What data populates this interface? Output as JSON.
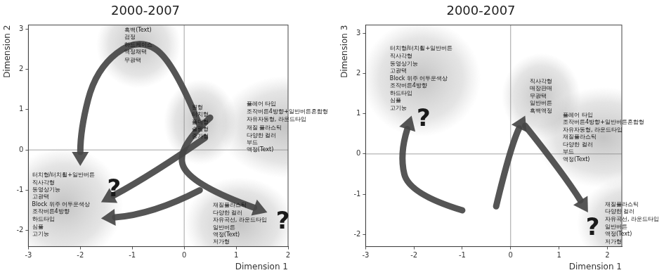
{
  "chart_data": [
    {
      "type": "scatter",
      "title": "2000-2007",
      "x_label": "Dimension 1",
      "y_label": "Dimension 2",
      "xlim": [
        -3,
        2
      ],
      "ylim": [
        -2.4,
        3.1
      ],
      "xticks": [
        -3,
        -2,
        -1,
        0,
        1,
        2
      ],
      "yticks": [
        -2,
        -1,
        0,
        1,
        2,
        3
      ],
      "grid": false,
      "marker": "none",
      "groups": [
        {
          "points": [
            {
              "x": -1.15,
              "y": 2.98,
              "label": "흑백(Text)"
            },
            {
              "x": -1.15,
              "y": 2.8,
              "label": "검정"
            },
            {
              "x": -1.15,
              "y": 2.6,
              "label": "하드케이스"
            },
            {
              "x": -1.15,
              "y": 2.43,
              "label": "액정채택"
            },
            {
              "x": -1.15,
              "y": 2.23,
              "label": "무광택"
            }
          ]
        },
        {
          "points": [
            {
              "x": 0.15,
              "y": 1.05,
              "label": "원형"
            },
            {
              "x": 0.15,
              "y": 0.87,
              "label": "터치형"
            },
            {
              "x": 0.15,
              "y": 0.69,
              "label": "폴더형"
            },
            {
              "x": 0.15,
              "y": 0.51,
              "label": "슬림형"
            },
            {
              "x": 0.15,
              "y": 0.33,
              "label": "중가형"
            }
          ]
        },
        {
          "points": [
            {
              "x": 1.2,
              "y": 1.14,
              "label": "플레어 타입"
            },
            {
              "x": 1.2,
              "y": 0.95,
              "label": "조작버튼4방향+일반버튼혼합형"
            },
            {
              "x": 1.2,
              "y": 0.75,
              "label": "자유자동형, 라운드타입"
            },
            {
              "x": 1.2,
              "y": 0.55,
              "label": "재질 플라스틱"
            },
            {
              "x": 1.2,
              "y": 0.36,
              "label": "다양한 컬러"
            },
            {
              "x": 1.2,
              "y": 0.18,
              "label": "부드"
            },
            {
              "x": 1.2,
              "y": 0.0,
              "label": "액정(Text)"
            }
          ]
        },
        {
          "points": [
            {
              "x": -2.93,
              "y": -0.63,
              "label": "터치형/터치휠+일반버튼"
            },
            {
              "x": -2.93,
              "y": -0.81,
              "label": "직사각형"
            },
            {
              "x": -2.93,
              "y": -0.99,
              "label": "동영상기능"
            },
            {
              "x": -2.93,
              "y": -1.17,
              "label": "고광택"
            },
            {
              "x": -2.93,
              "y": -1.36,
              "label": "Block 위주 어두운색상"
            },
            {
              "x": -2.93,
              "y": -1.54,
              "label": "조작버튼4방향"
            },
            {
              "x": -2.93,
              "y": -1.73,
              "label": "하드타입"
            },
            {
              "x": -2.93,
              "y": -1.91,
              "label": "심플"
            },
            {
              "x": -2.93,
              "y": -2.1,
              "label": "고기능"
            }
          ]
        },
        {
          "points": [
            {
              "x": 0.55,
              "y": -1.38,
              "label": "재질플라스틱"
            },
            {
              "x": 0.55,
              "y": -1.56,
              "label": "다양한 컬러"
            },
            {
              "x": 0.55,
              "y": -1.74,
              "label": "자유곡선, 라운드타입"
            },
            {
              "x": 0.55,
              "y": -1.93,
              "label": "일반버튼"
            },
            {
              "x": 0.55,
              "y": -2.11,
              "label": "액정(Text)"
            },
            {
              "x": 0.55,
              "y": -2.29,
              "label": "저가형"
            }
          ]
        }
      ],
      "annotations": [
        {
          "text": "?",
          "x": -1.35,
          "y": -1.0
        },
        {
          "text": "?",
          "x": 1.9,
          "y": -1.8
        }
      ],
      "arrows": [
        [
          [
            0.3,
            0.6
          ],
          [
            -0.2,
            2.2
          ],
          [
            -0.9,
            2.8
          ],
          [
            -1.7,
            2.0
          ],
          [
            -2.0,
            0.5
          ],
          [
            -2.0,
            -0.4
          ]
        ],
        [
          [
            0.4,
            0.3
          ],
          [
            -0.6,
            -0.6
          ],
          [
            -1.6,
            -1.3
          ]
        ],
        [
          [
            0.3,
            -1.0
          ],
          [
            -0.6,
            -1.6
          ],
          [
            -1.6,
            -1.7
          ]
        ],
        [
          [
            0.5,
            0.8
          ],
          [
            -0.2,
            0.0
          ],
          [
            0.2,
            -0.9
          ],
          [
            1.6,
            -1.55
          ]
        ]
      ]
    },
    {
      "type": "scatter",
      "title": "2000-2007",
      "x_label": "Dimension 1",
      "y_label": "Dimension 3",
      "xlim": [
        -3,
        2.3
      ],
      "ylim": [
        -2.3,
        3.2
      ],
      "xticks": [
        -3,
        -2,
        -1,
        0,
        1,
        2
      ],
      "yticks": [
        -2,
        -1,
        0,
        1,
        2,
        3
      ],
      "grid": false,
      "marker": "none",
      "groups": [
        {
          "points": [
            {
              "x": -2.5,
              "y": 2.61,
              "label": "터치형/터치휠+일반버튼"
            },
            {
              "x": -2.5,
              "y": 2.43,
              "label": "직사각형"
            },
            {
              "x": -2.5,
              "y": 2.24,
              "label": "동영상기능"
            },
            {
              "x": -2.5,
              "y": 2.06,
              "label": "고광택"
            },
            {
              "x": -2.5,
              "y": 1.87,
              "label": "Block 위주 어두운색상"
            },
            {
              "x": -2.5,
              "y": 1.69,
              "label": "조작버튼4방향"
            },
            {
              "x": -2.5,
              "y": 1.5,
              "label": "하드타입"
            },
            {
              "x": -2.5,
              "y": 1.32,
              "label": "심플"
            },
            {
              "x": -2.5,
              "y": 1.13,
              "label": "고기능"
            }
          ]
        },
        {
          "points": [
            {
              "x": 0.4,
              "y": 1.8,
              "label": "직사각형"
            },
            {
              "x": 0.4,
              "y": 1.62,
              "label": "매장판매"
            },
            {
              "x": 0.4,
              "y": 1.43,
              "label": "무광택"
            },
            {
              "x": 0.4,
              "y": 1.25,
              "label": "일반버튼"
            },
            {
              "x": 0.4,
              "y": 1.07,
              "label": "흑백액정"
            }
          ]
        },
        {
          "points": [
            {
              "x": 1.08,
              "y": 0.96,
              "label": "플레어 타입"
            },
            {
              "x": 1.08,
              "y": 0.78,
              "label": "조작버튼4방향+일반버튼혼합형"
            },
            {
              "x": 1.08,
              "y": 0.6,
              "label": "자유자동형, 라운드타입"
            },
            {
              "x": 1.08,
              "y": 0.42,
              "label": "재질플라스틱"
            },
            {
              "x": 1.08,
              "y": 0.23,
              "label": "다양한 컬러"
            },
            {
              "x": 1.08,
              "y": 0.05,
              "label": "부드"
            },
            {
              "x": 1.08,
              "y": -0.14,
              "label": "액정(Text)"
            }
          ]
        },
        {
          "points": [
            {
              "x": 1.95,
              "y": -1.26,
              "label": "재질플라스틱"
            },
            {
              "x": 1.95,
              "y": -1.44,
              "label": "다양한 컬러"
            },
            {
              "x": 1.95,
              "y": -1.63,
              "label": "자유곡선, 라운드타입"
            },
            {
              "x": 1.95,
              "y": -1.82,
              "label": "일반버튼"
            },
            {
              "x": 1.95,
              "y": -2.0,
              "label": "액정(Text)"
            },
            {
              "x": 1.95,
              "y": -2.18,
              "label": "저가형"
            }
          ]
        }
      ],
      "annotations": [
        {
          "text": "?",
          "x": -1.8,
          "y": 0.85
        },
        {
          "text": "?",
          "x": 1.7,
          "y": -1.85
        }
      ],
      "arrows": [
        [
          [
            -1.0,
            -1.4
          ],
          [
            -2.1,
            -1.0
          ],
          [
            -2.3,
            0.0
          ],
          [
            -2.05,
            0.95
          ]
        ],
        [
          [
            -0.3,
            -1.3
          ],
          [
            0.0,
            0.2
          ],
          [
            0.3,
            0.95
          ]
        ],
        [
          [
            0.3,
            0.7
          ],
          [
            1.1,
            -0.5
          ],
          [
            1.6,
            -1.45
          ]
        ]
      ]
    }
  ]
}
